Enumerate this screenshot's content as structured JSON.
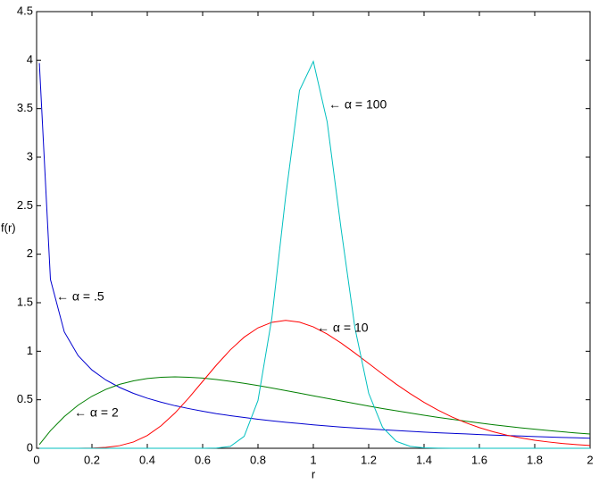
{
  "chart_data": {
    "type": "line",
    "xlabel": "r",
    "ylabel": "f(r)",
    "x": [
      0.01,
      0.05,
      0.1,
      0.15,
      0.2,
      0.25,
      0.3,
      0.35,
      0.4,
      0.45,
      0.5,
      0.55,
      0.6,
      0.65,
      0.7,
      0.75,
      0.8,
      0.85,
      0.9,
      0.95,
      1.0,
      1.05,
      1.1,
      1.15,
      1.2,
      1.25,
      1.3,
      1.35,
      1.4,
      1.45,
      1.5,
      1.55,
      1.6,
      1.65,
      1.7,
      1.75,
      1.8,
      1.85,
      1.9,
      1.95,
      2.0
    ],
    "series": [
      {
        "color": "#0000d0",
        "values": [
          3.97,
          1.74,
          1.2,
          0.955,
          0.807,
          0.704,
          0.627,
          0.566,
          0.516,
          0.475,
          0.439,
          0.409,
          0.382,
          0.357,
          0.336,
          0.317,
          0.299,
          0.283,
          0.268,
          0.255,
          0.242,
          0.23,
          0.219,
          0.209,
          0.2,
          0.191,
          0.183,
          0.175,
          0.167,
          0.16,
          0.154,
          0.148,
          0.142,
          0.136,
          0.131,
          0.126,
          0.121,
          0.116,
          0.112,
          0.108,
          0.104
        ]
      },
      {
        "color": "#007f00",
        "values": [
          0.039,
          0.181,
          0.327,
          0.444,
          0.536,
          0.607,
          0.659,
          0.695,
          0.719,
          0.732,
          0.736,
          0.732,
          0.723,
          0.709,
          0.69,
          0.669,
          0.646,
          0.621,
          0.595,
          0.568,
          0.541,
          0.514,
          0.488,
          0.461,
          0.435,
          0.41,
          0.386,
          0.363,
          0.34,
          0.319,
          0.299,
          0.279,
          0.261,
          0.243,
          0.227,
          0.211,
          0.197,
          0.183,
          0.17,
          0.158,
          0.147
        ]
      },
      {
        "color": "#ff0000",
        "values": [
          0,
          0,
          0,
          0.0002,
          0.0019,
          0.0087,
          0.027,
          0.065,
          0.132,
          0.232,
          0.363,
          0.519,
          0.689,
          0.858,
          1.014,
          1.145,
          1.241,
          1.298,
          1.318,
          1.3,
          1.251,
          1.177,
          1.085,
          0.982,
          0.874,
          0.765,
          0.66,
          0.563,
          0.473,
          0.394,
          0.324,
          0.264,
          0.213,
          0.17,
          0.135,
          0.107,
          0.083,
          0.065,
          0.05,
          0.038,
          0.029
        ]
      },
      {
        "color": "#00bfbf",
        "values": [
          0,
          0,
          0,
          0,
          0,
          0,
          0,
          0,
          0,
          0,
          0,
          0,
          0.0001,
          0.0019,
          0.0197,
          0.123,
          0.493,
          1.34,
          2.594,
          3.688,
          3.987,
          3.364,
          2.268,
          1.245,
          0.567,
          0.217,
          0.071,
          0.02,
          0.005,
          0.001,
          0,
          0,
          0,
          0,
          0,
          0,
          0,
          0,
          0,
          0,
          0
        ]
      }
    ],
    "annotations": [
      "← α = .5",
      "← α = 2",
      "← α = 10",
      "← α = 100"
    ],
    "xlim": [
      0,
      2
    ],
    "xticks": [
      0,
      0.2,
      0.4,
      0.6,
      0.8,
      1,
      1.2,
      1.4,
      1.6,
      1.8,
      2
    ],
    "ylim": [
      0,
      4.5
    ],
    "yticks": [
      0,
      0.5,
      1,
      1.5,
      2,
      2.5,
      3,
      3.5,
      4,
      4.5
    ],
    "grid": false
  }
}
